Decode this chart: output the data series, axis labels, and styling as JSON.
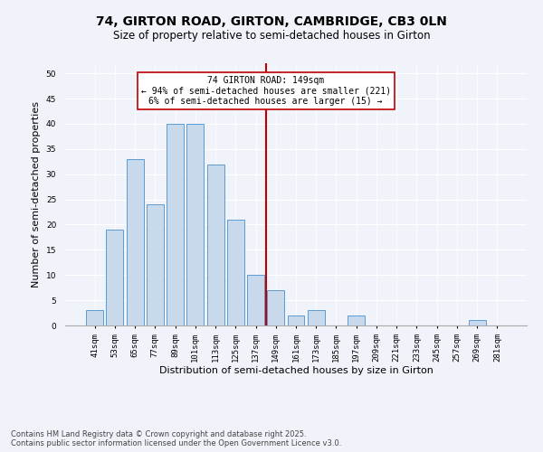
{
  "title_line1": "74, GIRTON ROAD, GIRTON, CAMBRIDGE, CB3 0LN",
  "title_line2": "Size of property relative to semi-detached houses in Girton",
  "xlabel": "Distribution of semi-detached houses by size in Girton",
  "ylabel": "Number of semi-detached properties",
  "categories": [
    "41sqm",
    "53sqm",
    "65sqm",
    "77sqm",
    "89sqm",
    "101sqm",
    "113sqm",
    "125sqm",
    "137sqm",
    "149sqm",
    "161sqm",
    "173sqm",
    "185sqm",
    "197sqm",
    "209sqm",
    "221sqm",
    "233sqm",
    "245sqm",
    "257sqm",
    "269sqm",
    "281sqm"
  ],
  "values": [
    3,
    19,
    33,
    24,
    40,
    40,
    32,
    21,
    10,
    7,
    2,
    3,
    0,
    2,
    0,
    0,
    0,
    0,
    0,
    1,
    0
  ],
  "bar_color": "#c9d9ec",
  "bar_edge_color": "#5b9bd5",
  "highlight_index": 9,
  "highlight_color": "#c00000",
  "annotation_title": "74 GIRTON ROAD: 149sqm",
  "annotation_line2": "← 94% of semi-detached houses are smaller (221)",
  "annotation_line3": "6% of semi-detached houses are larger (15) →",
  "annotation_box_color": "#c00000",
  "ylim": [
    0,
    52
  ],
  "yticks": [
    0,
    5,
    10,
    15,
    20,
    25,
    30,
    35,
    40,
    45,
    50
  ],
  "background_color": "#f0f4fa",
  "plot_bg_color": "#f0f4fa",
  "footer_line1": "Contains HM Land Registry data © Crown copyright and database right 2025.",
  "footer_line2": "Contains public sector information licensed under the Open Government Licence v3.0.",
  "title_fontsize": 10,
  "subtitle_fontsize": 8.5,
  "axis_label_fontsize": 8,
  "tick_fontsize": 6.5,
  "annotation_fontsize": 7,
  "footer_fontsize": 6
}
